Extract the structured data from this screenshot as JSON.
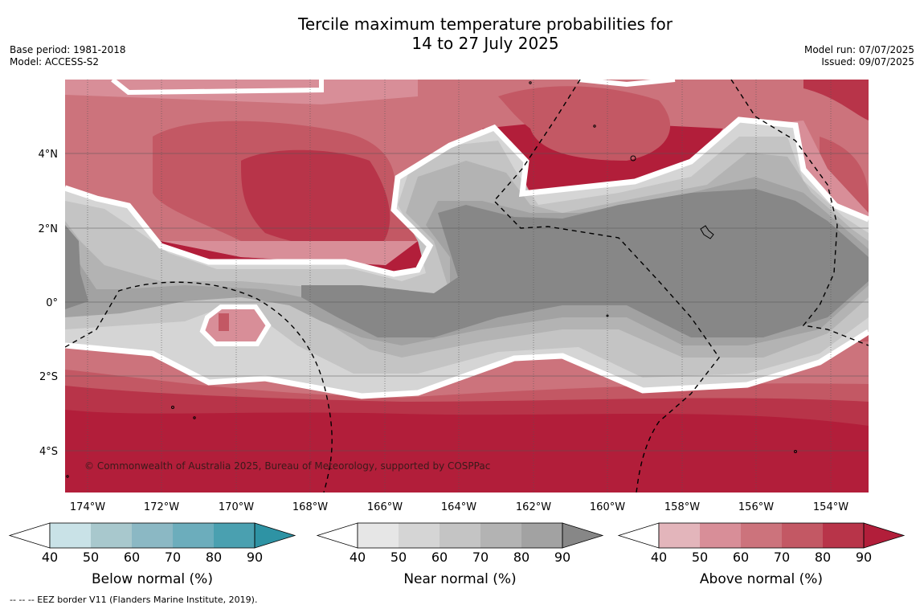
{
  "header": {
    "title_line1": "Tercile maximum temperature probabilities for",
    "title_line2": "14 to 27 July 2025",
    "base_period": "Base period: 1981-2018",
    "model": "Model: ACCESS-S2",
    "model_run": "Model run: 07/07/2025",
    "issued": "Issued: 09/07/2025"
  },
  "map": {
    "lat_labels": [
      "4°N",
      "2°N",
      "0°",
      "2°S",
      "4°S"
    ],
    "lon_labels": [
      "174°W",
      "172°W",
      "170°W",
      "168°W",
      "166°W",
      "164°W",
      "162°W",
      "160°W",
      "158°W",
      "156°W",
      "154°W"
    ],
    "copyright": "© Commonwealth of Australia 2025, Bureau of Meteorology, supported by COSPPac"
  },
  "legends": [
    {
      "name": "below-normal",
      "title": "Below normal (%)",
      "ticks": [
        "40",
        "50",
        "60",
        "70",
        "80",
        "90"
      ],
      "colors": [
        "#ffffff",
        "#c9e2e7",
        "#a8c8cd",
        "#8bb8c4",
        "#6cadbc",
        "#4aa0b0",
        "#2e93a4"
      ]
    },
    {
      "name": "near-normal",
      "title": "Near normal (%)",
      "ticks": [
        "40",
        "50",
        "60",
        "70",
        "80",
        "90"
      ],
      "colors": [
        "#ffffff",
        "#e6e6e6",
        "#d5d5d5",
        "#c4c4c4",
        "#b3b3b3",
        "#a2a2a2",
        "#878787"
      ]
    },
    {
      "name": "above-normal",
      "title": "Above normal (%)",
      "ticks": [
        "40",
        "50",
        "60",
        "70",
        "80",
        "90"
      ],
      "colors": [
        "#ffffff",
        "#e3b5bb",
        "#d88e98",
        "#cc737c",
        "#c35864",
        "#b83449",
        "#b21e3a"
      ]
    }
  ],
  "footnote": "--  --  -- EEZ border V11 (Flanders Marine Institute, 2019)."
}
